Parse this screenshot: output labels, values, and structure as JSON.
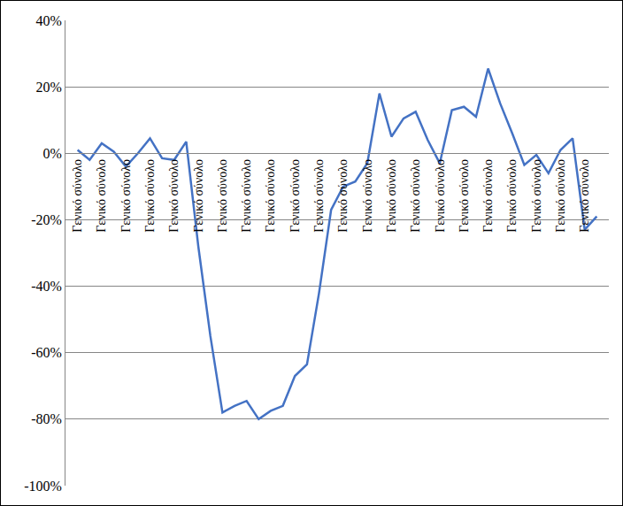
{
  "chart_data": {
    "type": "line",
    "categories": [
      "Γενικό σύνολο",
      null,
      "Γενικό σύνολο",
      null,
      "Γενικό σύνολο",
      null,
      "Γενικό σύνολο",
      null,
      "Γενικό σύνολο",
      null,
      "Γενικό σύνολο",
      null,
      "Γενικό σύνολο",
      null,
      "Γενικό σύνολο",
      null,
      "Γενικό σύνολο",
      null,
      "Γενικό σύνολο",
      null,
      "Γενικό σύνολο",
      null,
      "Γενικό σύνολο",
      null,
      "Γενικό σύνολο",
      null,
      "Γενικό σύνολο",
      null,
      "Γενικό σύνολο",
      null,
      "Γενικό σύνολο",
      null,
      "Γενικό σύνολο",
      null,
      "Γενικό σύνολο",
      null,
      "Γενικό σύνολο",
      null,
      "Γενικό σύνολο",
      null,
      "Γενικό σύνολο",
      null,
      "Γενικό σύνολο",
      null
    ],
    "values": [
      1,
      -2,
      3,
      0.5,
      -4,
      0,
      4.5,
      -1.5,
      -2,
      3.5,
      -28,
      -55,
      -78,
      -76,
      -74.5,
      -80,
      -77.5,
      -76,
      -67,
      -63.5,
      -42,
      -17,
      -10,
      -8.5,
      -3,
      18,
      5,
      10.5,
      12.5,
      4,
      -3,
      13,
      14,
      11,
      25.5,
      15,
      6,
      -3.5,
      -0.5,
      -6,
      1,
      4.5,
      -23,
      -19
    ],
    "color": "#4472c4",
    "ylim": [
      -100,
      40
    ],
    "yticks": [
      {
        "value": -100,
        "label": "-100%"
      },
      {
        "value": -80,
        "label": "-80%"
      },
      {
        "value": -60,
        "label": "-60%"
      },
      {
        "value": -40,
        "label": "-40%"
      },
      {
        "value": -20,
        "label": "-20%"
      },
      {
        "value": 0,
        "label": "0%"
      },
      {
        "value": 20,
        "label": "20%"
      },
      {
        "value": 40,
        "label": "40%"
      }
    ],
    "grid": true
  }
}
